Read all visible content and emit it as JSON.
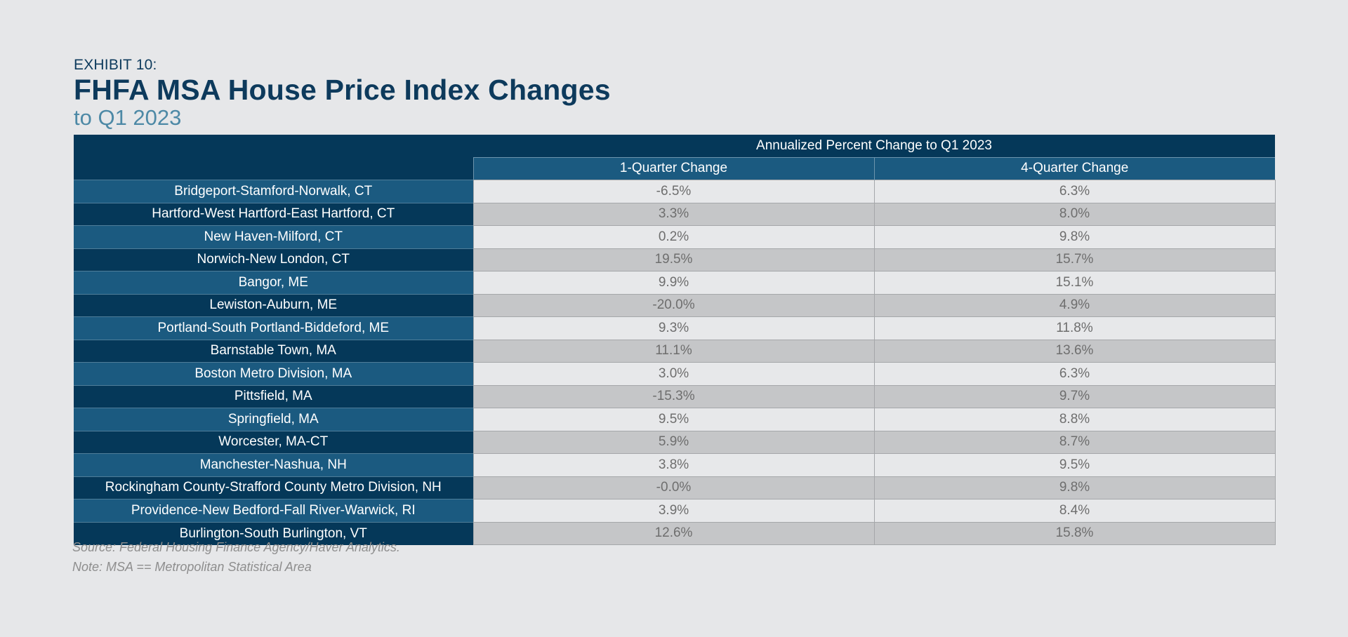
{
  "exhibit_label": "EXHIBIT 10:",
  "title": "FHFA MSA House Price Index Changes",
  "subtitle": "to Q1 2023",
  "chart_data": {
    "type": "table",
    "group_header": "Annualized Percent Change to Q1 2023",
    "columns": [
      "1-Quarter Change",
      "4-Quarter Change"
    ],
    "rows": [
      {
        "metro": "Bridgeport-Stamford-Norwalk, CT",
        "q1": "-6.5%",
        "q4": "6.3%"
      },
      {
        "metro": "Hartford-West Hartford-East Hartford, CT",
        "q1": "3.3%",
        "q4": "8.0%"
      },
      {
        "metro": "New Haven-Milford, CT",
        "q1": "0.2%",
        "q4": "9.8%"
      },
      {
        "metro": "Norwich-New London, CT",
        "q1": "19.5%",
        "q4": "15.7%"
      },
      {
        "metro": "Bangor, ME",
        "q1": "9.9%",
        "q4": "15.1%"
      },
      {
        "metro": "Lewiston-Auburn, ME",
        "q1": "-20.0%",
        "q4": "4.9%"
      },
      {
        "metro": "Portland-South Portland-Biddeford, ME",
        "q1": "9.3%",
        "q4": "11.8%"
      },
      {
        "metro": "Barnstable Town, MA",
        "q1": "11.1%",
        "q4": "13.6%"
      },
      {
        "metro": "Boston Metro Division, MA",
        "q1": "3.0%",
        "q4": "6.3%"
      },
      {
        "metro": "Pittsfield, MA",
        "q1": "-15.3%",
        "q4": "9.7%"
      },
      {
        "metro": "Springfield, MA",
        "q1": "9.5%",
        "q4": "8.8%"
      },
      {
        "metro": "Worcester, MA-CT",
        "q1": "5.9%",
        "q4": "8.7%"
      },
      {
        "metro": "Manchester-Nashua, NH",
        "q1": "3.8%",
        "q4": "9.5%"
      },
      {
        "metro": "Rockingham County-Strafford County Metro Division, NH",
        "q1": "-0.0%",
        "q4": "9.8%"
      },
      {
        "metro": "Providence-New Bedford-Fall River-Warwick, RI",
        "q1": "3.9%",
        "q4": "8.4%"
      },
      {
        "metro": "Burlington-South Burlington, VT",
        "q1": "12.6%",
        "q4": "15.8%"
      }
    ]
  },
  "source_note": "Source: Federal Housing Finance Agency/Haver Analytics.",
  "msa_note": "Note: MSA == Metropolitan Statistical Area",
  "colors": {
    "header_dark": "#053859",
    "header_mid": "#1b5a80",
    "title": "#0d3a5c",
    "subtitle": "#4d89a6",
    "row_light": "#e7e8ea",
    "row_dark": "#c5c6c8",
    "background": "#e6e7e9"
  }
}
